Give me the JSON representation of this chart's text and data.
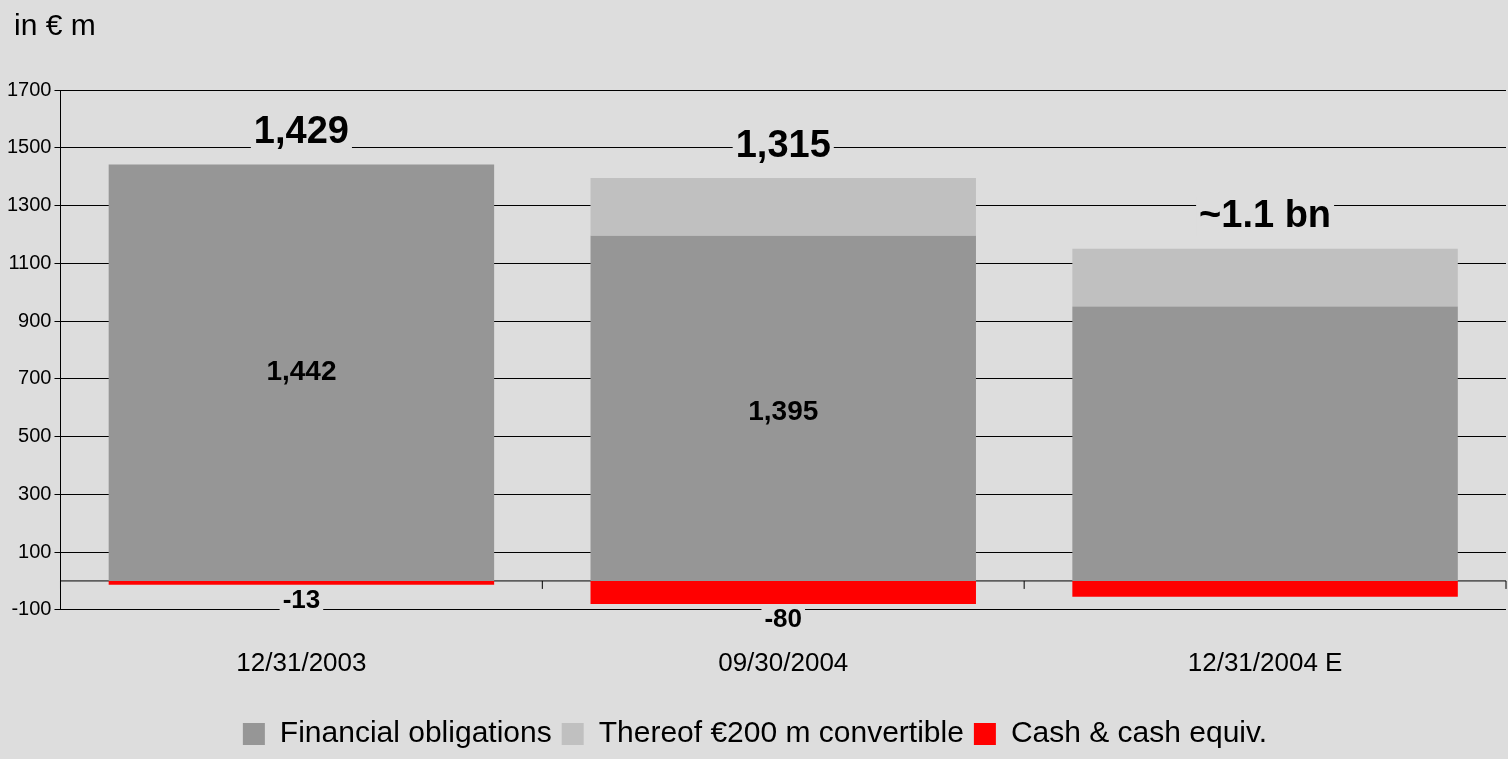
{
  "chart_data": {
    "type": "bar",
    "stacked": true,
    "ylabel": "in € m",
    "categories": [
      "12/31/2003",
      "09/30/2004",
      "12/31/2004 E"
    ],
    "series": [
      {
        "name": "Financial obligations",
        "color": "#969696",
        "values": [
          1442,
          1195,
          950
        ],
        "value_labels": [
          "1,442",
          null,
          null
        ]
      },
      {
        "name": "Thereof €200 m convertible",
        "color": "#c0c0c0",
        "values": [
          0,
          200,
          200
        ]
      },
      {
        "name": "Cash & cash equiv.",
        "color": "#ff0000",
        "values": [
          -13,
          -80,
          -55
        ],
        "value_labels": [
          "-13",
          "-80",
          null
        ]
      }
    ],
    "totals": [
      "1,429",
      "1,315",
      "~1.1 bn"
    ],
    "annotations": [
      "1,395"
    ],
    "ylim": [
      -100,
      1700
    ],
    "yticks": [
      -100,
      100,
      300,
      500,
      700,
      900,
      1100,
      1300,
      1500,
      1700
    ],
    "ref_lines": [
      {
        "axis": "y",
        "value": 0,
        "color": "#000000"
      }
    ],
    "grid": "y",
    "legend": "bottom"
  }
}
